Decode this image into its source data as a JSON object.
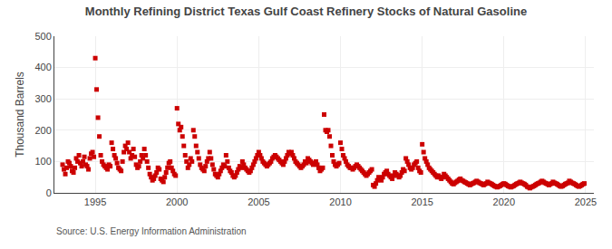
{
  "chart_data": {
    "type": "scatter",
    "title": "Monthly Refining District Texas Gulf Coast Refinery Stocks of Natural Gasoline",
    "ylabel": "Thousand Barrels",
    "annotations": [
      "Source: U.S. Energy Information Administration"
    ],
    "color": "#cc0000",
    "marker": "square",
    "grid": true,
    "xlim": [
      1992.5,
      2025.5
    ],
    "xticks": [
      1995,
      2000,
      2005,
      2010,
      2015,
      2020,
      2025
    ],
    "ylim": [
      0,
      500
    ],
    "yticks": [
      0,
      100,
      200,
      300,
      400,
      500
    ],
    "x": [
      1993.0,
      1993.083,
      1993.167,
      1993.25,
      1993.333,
      1993.417,
      1993.5,
      1993.583,
      1993.667,
      1993.75,
      1993.833,
      1993.917,
      1994.0,
      1994.083,
      1994.167,
      1994.25,
      1994.333,
      1994.417,
      1994.5,
      1994.583,
      1994.667,
      1994.75,
      1994.833,
      1994.917,
      1995.0,
      1995.083,
      1995.167,
      1995.25,
      1995.333,
      1995.417,
      1995.5,
      1995.583,
      1995.667,
      1995.75,
      1995.833,
      1995.917,
      1996.0,
      1996.083,
      1996.167,
      1996.25,
      1996.333,
      1996.417,
      1996.5,
      1996.583,
      1996.667,
      1996.75,
      1996.833,
      1996.917,
      1997.0,
      1997.083,
      1997.167,
      1997.25,
      1997.333,
      1997.417,
      1997.5,
      1997.583,
      1997.667,
      1997.75,
      1997.833,
      1997.917,
      1998.0,
      1998.083,
      1998.167,
      1998.25,
      1998.333,
      1998.417,
      1998.5,
      1998.583,
      1998.667,
      1998.75,
      1998.833,
      1998.917,
      1999.0,
      1999.083,
      1999.167,
      1999.25,
      1999.333,
      1999.417,
      1999.5,
      1999.583,
      1999.667,
      1999.75,
      1999.833,
      1999.917,
      2000.0,
      2000.083,
      2000.167,
      2000.25,
      2000.333,
      2000.417,
      2000.5,
      2000.583,
      2000.667,
      2000.75,
      2000.833,
      2000.917,
      2001.0,
      2001.083,
      2001.167,
      2001.25,
      2001.333,
      2001.417,
      2001.5,
      2001.583,
      2001.667,
      2001.75,
      2001.833,
      2001.917,
      2002.0,
      2002.083,
      2002.167,
      2002.25,
      2002.333,
      2002.417,
      2002.5,
      2002.583,
      2002.667,
      2002.75,
      2002.833,
      2002.917,
      2003.0,
      2003.083,
      2003.167,
      2003.25,
      2003.333,
      2003.417,
      2003.5,
      2003.583,
      2003.667,
      2003.75,
      2003.833,
      2003.917,
      2004.0,
      2004.083,
      2004.167,
      2004.25,
      2004.333,
      2004.417,
      2004.5,
      2004.583,
      2004.667,
      2004.75,
      2004.833,
      2004.917,
      2005.0,
      2005.083,
      2005.167,
      2005.25,
      2005.333,
      2005.417,
      2005.5,
      2005.583,
      2005.667,
      2005.75,
      2005.833,
      2005.917,
      2006.0,
      2006.083,
      2006.167,
      2006.25,
      2006.333,
      2006.417,
      2006.5,
      2006.583,
      2006.667,
      2006.75,
      2006.833,
      2006.917,
      2007.0,
      2007.083,
      2007.167,
      2007.25,
      2007.333,
      2007.417,
      2007.5,
      2007.583,
      2007.667,
      2007.75,
      2007.833,
      2007.917,
      2008.0,
      2008.083,
      2008.167,
      2008.25,
      2008.333,
      2008.417,
      2008.5,
      2008.583,
      2008.667,
      2008.75,
      2008.833,
      2008.917,
      2009.0,
      2009.083,
      2009.167,
      2009.25,
      2009.333,
      2009.417,
      2009.5,
      2009.583,
      2009.667,
      2009.75,
      2009.833,
      2009.917,
      2010.0,
      2010.083,
      2010.167,
      2010.25,
      2010.333,
      2010.417,
      2010.5,
      2010.583,
      2010.667,
      2010.75,
      2010.833,
      2010.917,
      2011.0,
      2011.083,
      2011.167,
      2011.25,
      2011.333,
      2011.417,
      2011.5,
      2011.583,
      2011.667,
      2011.75,
      2011.833,
      2011.917,
      2012.0,
      2012.083,
      2012.167,
      2012.25,
      2012.333,
      2012.417,
      2012.5,
      2012.583,
      2012.667,
      2012.75,
      2012.833,
      2012.917,
      2013.0,
      2013.083,
      2013.167,
      2013.25,
      2013.333,
      2013.417,
      2013.5,
      2013.583,
      2013.667,
      2013.75,
      2013.833,
      2013.917,
      2014.0,
      2014.083,
      2014.167,
      2014.25,
      2014.333,
      2014.417,
      2014.5,
      2014.583,
      2014.667,
      2014.75,
      2014.833,
      2014.917,
      2015.0,
      2015.083,
      2015.167,
      2015.25,
      2015.333,
      2015.417,
      2015.5,
      2015.583,
      2015.667,
      2015.75,
      2015.833,
      2015.917,
      2016.0,
      2016.083,
      2016.167,
      2016.25,
      2016.333,
      2016.417,
      2016.5,
      2016.583,
      2016.667,
      2016.75,
      2016.833,
      2016.917,
      2017.0,
      2017.083,
      2017.167,
      2017.25,
      2017.333,
      2017.417,
      2017.5,
      2017.583,
      2017.667,
      2017.75,
      2017.833,
      2017.917,
      2018.0,
      2018.083,
      2018.167,
      2018.25,
      2018.333,
      2018.417,
      2018.5,
      2018.583,
      2018.667,
      2018.75,
      2018.833,
      2018.917,
      2019.0,
      2019.083,
      2019.167,
      2019.25,
      2019.333,
      2019.417,
      2019.5,
      2019.583,
      2019.667,
      2019.75,
      2019.833,
      2019.917,
      2020.0,
      2020.083,
      2020.167,
      2020.25,
      2020.333,
      2020.417,
      2020.5,
      2020.583,
      2020.667,
      2020.75,
      2020.833,
      2020.917,
      2021.0,
      2021.083,
      2021.167,
      2021.25,
      2021.333,
      2021.417,
      2021.5,
      2021.583,
      2021.667,
      2021.75,
      2021.833,
      2021.917,
      2022.0,
      2022.083,
      2022.167,
      2022.25,
      2022.333,
      2022.417,
      2022.5,
      2022.583,
      2022.667,
      2022.75,
      2022.833,
      2022.917,
      2023.0,
      2023.083,
      2023.167,
      2023.25,
      2023.333,
      2023.417,
      2023.5,
      2023.583,
      2023.667,
      2023.75,
      2023.833,
      2023.917,
      2024.0,
      2024.083,
      2024.167,
      2024.25,
      2024.333,
      2024.417,
      2024.5,
      2024.583,
      2024.667,
      2024.75,
      2024.833,
      2024.917
    ],
    "values": [
      90,
      75,
      60,
      80,
      100,
      95,
      85,
      70,
      65,
      80,
      110,
      100,
      120,
      95,
      85,
      100,
      115,
      90,
      85,
      75,
      110,
      125,
      130,
      115,
      430,
      330,
      240,
      180,
      120,
      100,
      90,
      85,
      80,
      75,
      90,
      85,
      160,
      140,
      120,
      110,
      95,
      80,
      75,
      70,
      100,
      130,
      150,
      140,
      160,
      130,
      110,
      120,
      140,
      115,
      90,
      80,
      85,
      100,
      120,
      110,
      140,
      120,
      100,
      80,
      60,
      50,
      40,
      45,
      55,
      65,
      80,
      75,
      45,
      40,
      35,
      50,
      65,
      80,
      95,
      100,
      80,
      70,
      60,
      55,
      270,
      220,
      200,
      210,
      180,
      150,
      120,
      100,
      80,
      90,
      110,
      100,
      200,
      180,
      150,
      130,
      110,
      90,
      80,
      75,
      70,
      85,
      100,
      110,
      130,
      110,
      90,
      75,
      60,
      55,
      50,
      60,
      70,
      80,
      90,
      85,
      120,
      100,
      80,
      70,
      65,
      55,
      50,
      55,
      65,
      75,
      85,
      80,
      100,
      90,
      80,
      75,
      70,
      65,
      70,
      80,
      90,
      100,
      110,
      120,
      130,
      120,
      110,
      100,
      95,
      90,
      85,
      90,
      95,
      100,
      110,
      115,
      120,
      115,
      110,
      105,
      100,
      95,
      90,
      100,
      110,
      120,
      130,
      125,
      130,
      120,
      110,
      100,
      95,
      90,
      85,
      80,
      85,
      90,
      100,
      95,
      110,
      105,
      100,
      95,
      90,
      95,
      100,
      90,
      80,
      70,
      75,
      80,
      250,
      200,
      195,
      200,
      180,
      150,
      120,
      100,
      90,
      85,
      90,
      95,
      160,
      140,
      120,
      110,
      100,
      90,
      85,
      80,
      80,
      75,
      80,
      85,
      90,
      85,
      80,
      75,
      70,
      65,
      60,
      55,
      60,
      65,
      70,
      75,
      25,
      20,
      30,
      40,
      50,
      45,
      40,
      50,
      60,
      65,
      70,
      60,
      55,
      50,
      45,
      55,
      65,
      60,
      55,
      50,
      55,
      65,
      75,
      70,
      110,
      100,
      90,
      80,
      75,
      80,
      90,
      95,
      100,
      80,
      70,
      65,
      155,
      130,
      110,
      100,
      90,
      80,
      75,
      70,
      65,
      60,
      55,
      50,
      55,
      50,
      45,
      50,
      60,
      55,
      50,
      45,
      40,
      35,
      30,
      28,
      32,
      35,
      38,
      42,
      45,
      40,
      38,
      35,
      33,
      30,
      28,
      25,
      28,
      30,
      32,
      35,
      38,
      35,
      32,
      30,
      28,
      25,
      28,
      30,
      35,
      32,
      30,
      28,
      25,
      22,
      20,
      18,
      20,
      22,
      25,
      28,
      30,
      28,
      25,
      22,
      20,
      18,
      20,
      22,
      25,
      28,
      30,
      32,
      35,
      32,
      30,
      28,
      25,
      20,
      18,
      15,
      18,
      20,
      22,
      25,
      28,
      30,
      32,
      35,
      38,
      35,
      32,
      30,
      28,
      25,
      28,
      30,
      35,
      32,
      30,
      28,
      25,
      22,
      20,
      22,
      25,
      28,
      30,
      32,
      38,
      35,
      32,
      30,
      28,
      25,
      22,
      20,
      22,
      25,
      28,
      30
    ]
  }
}
